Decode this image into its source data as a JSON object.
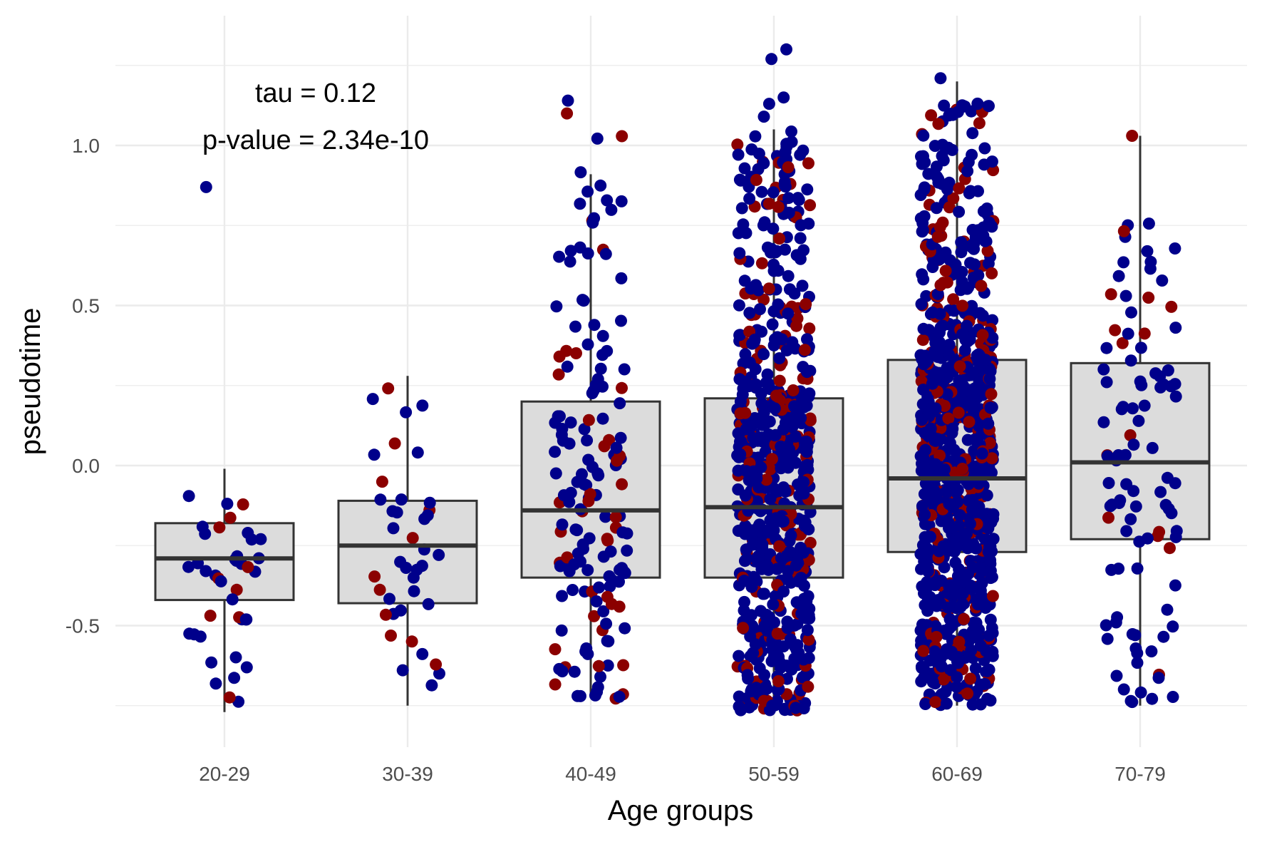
{
  "chart_data": {
    "type": "box",
    "xlabel": "Age groups",
    "ylabel": "pseudotime",
    "categories": [
      "20-29",
      "30-39",
      "40-49",
      "50-59",
      "60-69",
      "70-79"
    ],
    "ylim": [
      -0.88,
      1.3
    ],
    "y_ticks": [
      -0.5,
      0.0,
      0.5,
      1.0
    ],
    "y_tick_labels": [
      "-0.5",
      "0.0",
      "0.5",
      "1.0"
    ],
    "grid": true,
    "annotations": [
      "tau = 0.12",
      "p-value = 2.34e-10"
    ],
    "colors": {
      "point_a": "#00008B",
      "point_b": "#8B0000",
      "box_fill": "#DCDCDC",
      "box_line": "#333333",
      "grid": "#EBEBEB"
    },
    "boxes": [
      {
        "category": "20-29",
        "whisker_low": -0.77,
        "q1": -0.42,
        "median": -0.29,
        "q3": -0.18,
        "whisker_high": -0.01
      },
      {
        "category": "30-39",
        "whisker_low": -0.75,
        "q1": -0.43,
        "median": -0.25,
        "q3": -0.11,
        "whisker_high": 0.28
      },
      {
        "category": "40-49",
        "whisker_low": -0.72,
        "q1": -0.35,
        "median": -0.14,
        "q3": 0.2,
        "whisker_high": 0.91
      },
      {
        "category": "50-59",
        "whisker_low": -0.77,
        "q1": -0.35,
        "median": -0.13,
        "q3": 0.21,
        "whisker_high": 1.05
      },
      {
        "category": "60-69",
        "whisker_low": -0.75,
        "q1": -0.27,
        "median": -0.04,
        "q3": 0.33,
        "whisker_high": 1.2
      },
      {
        "category": "70-79",
        "whisker_low": -0.75,
        "q1": -0.23,
        "median": 0.01,
        "q3": 0.32,
        "whisker_high": 1.03
      }
    ],
    "outliers": [
      {
        "category": "20-29",
        "y": 0.87,
        "group": "a"
      },
      {
        "category": "50-59",
        "y": 1.3,
        "group": "a"
      },
      {
        "category": "50-59",
        "y": 1.27,
        "group": "a"
      },
      {
        "category": "50-59",
        "y": 1.15,
        "group": "a"
      },
      {
        "category": "50-59",
        "y": 1.13,
        "group": "a"
      },
      {
        "category": "50-59",
        "y": 1.09,
        "group": "a"
      },
      {
        "category": "40-49",
        "y": 1.14,
        "group": "a"
      },
      {
        "category": "40-49",
        "y": 1.1,
        "group": "b"
      },
      {
        "category": "60-69",
        "y": 1.21,
        "group": "a"
      },
      {
        "category": "70-79",
        "y": 1.03,
        "group": "b"
      }
    ],
    "points": [
      {
        "category": "20-29",
        "n": 40,
        "frac_b": 0.25,
        "spread": 0.5,
        "y_min": -0.77,
        "y_max": -0.01
      },
      {
        "category": "30-39",
        "n": 40,
        "frac_b": 0.3,
        "spread": 0.5,
        "y_min": -0.75,
        "y_max": 0.37
      },
      {
        "category": "40-49",
        "n": 160,
        "frac_b": 0.25,
        "spread": 0.5,
        "y_min": -0.73,
        "y_max": 1.07
      },
      {
        "category": "50-59",
        "n": 700,
        "frac_b": 0.22,
        "spread": 0.5,
        "y_min": -0.77,
        "y_max": 1.05
      },
      {
        "category": "60-69",
        "n": 950,
        "frac_b": 0.22,
        "spread": 0.5,
        "y_min": -0.75,
        "y_max": 1.14
      },
      {
        "category": "70-79",
        "n": 100,
        "frac_b": 0.18,
        "spread": 0.5,
        "y_min": -0.74,
        "y_max": 0.76
      }
    ]
  }
}
